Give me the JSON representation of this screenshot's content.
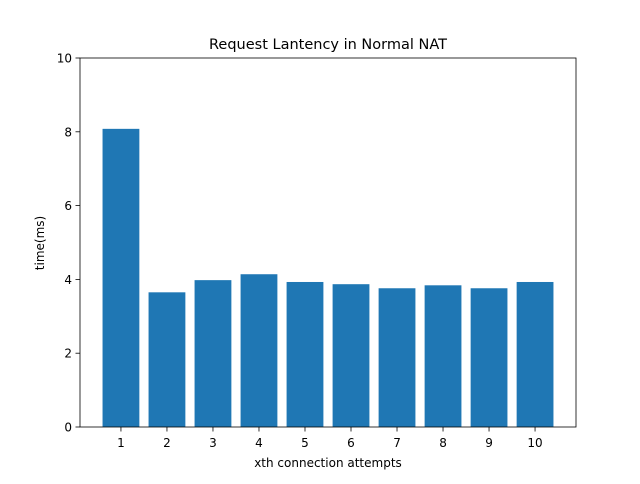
{
  "chart_data": {
    "type": "bar",
    "title": "Request Lantency in Normal NAT",
    "xlabel": "xth connection attempts",
    "ylabel": "time(ms)",
    "categories": [
      "1",
      "2",
      "3",
      "4",
      "5",
      "6",
      "7",
      "8",
      "9",
      "10"
    ],
    "values": [
      8.08,
      3.65,
      3.98,
      4.14,
      3.93,
      3.87,
      3.76,
      3.84,
      3.76,
      3.93
    ],
    "ylim": [
      0,
      10
    ],
    "yticks": [
      0,
      2,
      4,
      6,
      8,
      10
    ],
    "grid": false,
    "legend": "none",
    "bar_color": "#1f77b4"
  }
}
